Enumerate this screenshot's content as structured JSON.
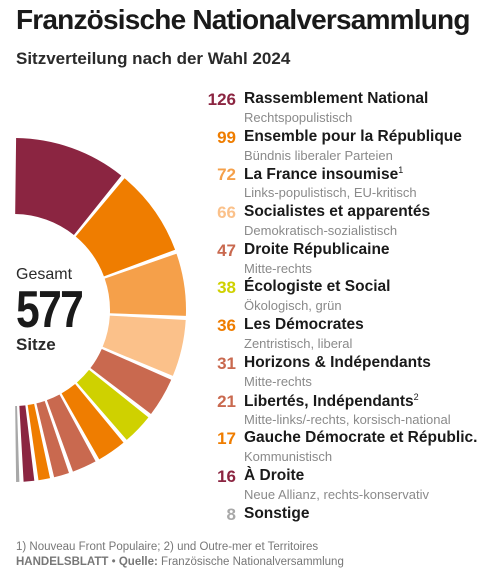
{
  "title": "Französische Nationalversammlung",
  "subtitle": "Sitzverteilung nach der Wahl 2024",
  "center": {
    "label_top": "Gesamt",
    "total": "577",
    "label_bottom": "Sitze"
  },
  "colors": {
    "dark_red": "#8b2541",
    "orange": "#ef7d00",
    "light_orange": "#f5a04a",
    "peach": "#fbc18a",
    "terracotta": "#c9694f",
    "yellow_green": "#cfd100",
    "grey": "#a8a8a8"
  },
  "chart_data": {
    "type": "pie",
    "variant": "half-donut",
    "title": "Französische Nationalversammlung",
    "subtitle": "Sitzverteilung nach der Wahl 2024",
    "total": 577,
    "series": [
      {
        "name": "Rassemblement National",
        "note": "",
        "description": "Rechtspopulistisch",
        "value": 126,
        "color": "#8b2541"
      },
      {
        "name": "Ensemble pour la République",
        "note": "",
        "description": "Bündnis liberaler Parteien",
        "value": 99,
        "color": "#ef7d00"
      },
      {
        "name": "La France insoumise",
        "note": "1",
        "description": "Links-populistisch, EU-kritisch",
        "value": 72,
        "color": "#f5a04a"
      },
      {
        "name": "Socialistes et apparentés",
        "note": "",
        "description": "Demokratisch-sozialistisch",
        "value": 66,
        "color": "#fbc18a"
      },
      {
        "name": "Droite Républicaine",
        "note": "",
        "description": "Mitte-rechts",
        "value": 47,
        "color": "#c9694f"
      },
      {
        "name": "Écologiste et Social",
        "note": "",
        "description": "Ökologisch, grün",
        "value": 38,
        "color": "#cfd100"
      },
      {
        "name": "Les Démocrates",
        "note": "",
        "description": "Zentristisch, liberal",
        "value": 36,
        "color": "#ef7d00"
      },
      {
        "name": "Horizons & Indépendants",
        "note": "",
        "description": "Mitte-rechts",
        "value": 31,
        "color": "#c9694f"
      },
      {
        "name": "Libertés, Indépendants",
        "note": "2",
        "description": "Mitte-links/-rechts, korsisch-national",
        "value": 21,
        "color": "#c9694f"
      },
      {
        "name": "Gauche Démocrate et Républic.",
        "note": "",
        "description": "Kommunistisch",
        "value": 17,
        "color": "#ef7d00"
      },
      {
        "name": "À Droite",
        "note": "",
        "description": "Neue Allianz, rechts-konservativ",
        "value": 16,
        "color": "#8b2541"
      },
      {
        "name": "Sonstige",
        "note": "",
        "description": "",
        "value": 8,
        "color": "#a8a8a8"
      }
    ]
  },
  "footnote": "1) Nouveau Front Populaire; 2) und Outre-mer et Territoires",
  "source": {
    "brand": "HANDELSBLATT",
    "separator": "•",
    "label": "Quelle:",
    "text": "Französische Nationalversammlung"
  }
}
